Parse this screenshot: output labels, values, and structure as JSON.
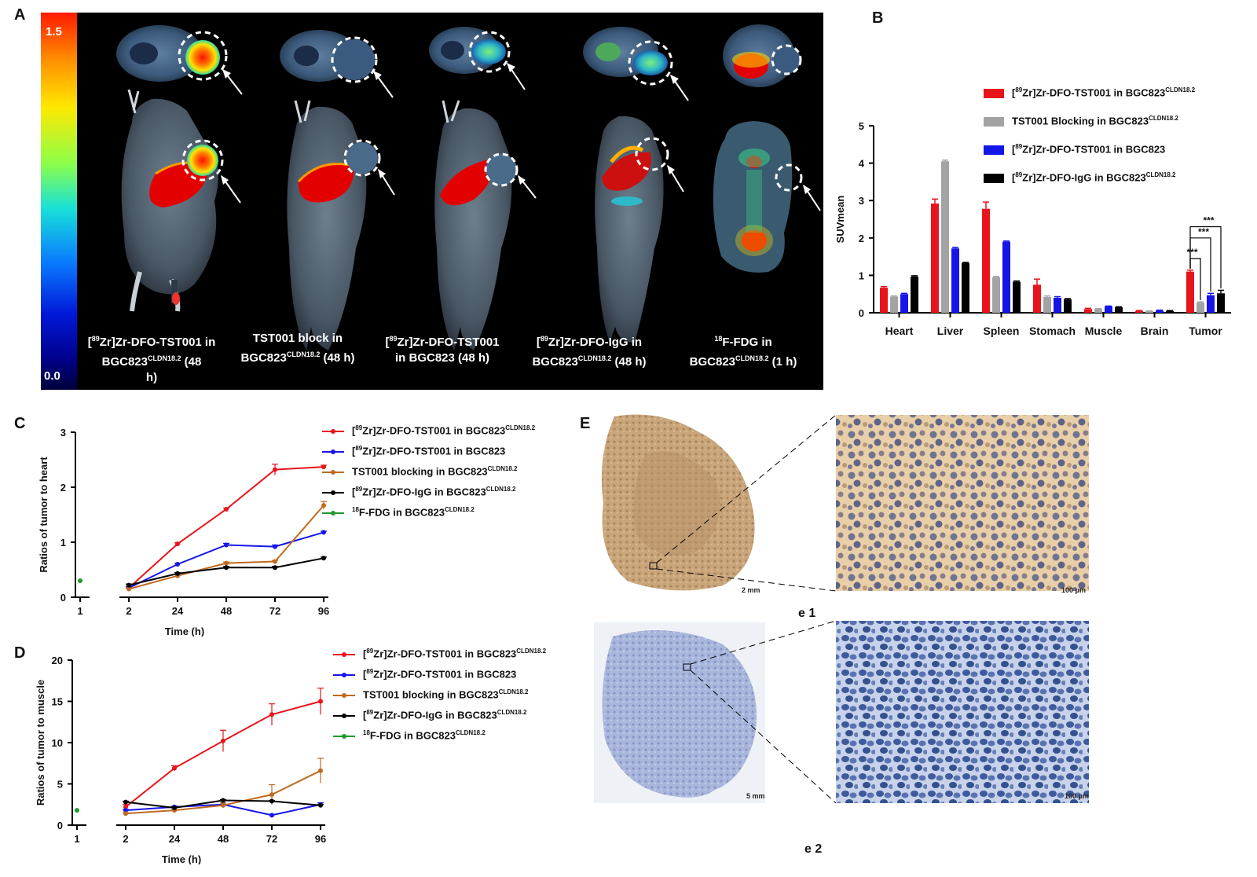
{
  "panels": {
    "A": "A",
    "B": "B",
    "C": "C",
    "D": "D",
    "E": "E"
  },
  "panel_a": {
    "colorbar_max": "1.5",
    "colorbar_min": "0.0",
    "captions": [
      {
        "pre": "[",
        "sup1": "89",
        "mid": "Zr]Zr-DFO-TST001 in",
        "line2": "BGC823",
        "sup2": "CLDN18.2",
        "post": "  (48",
        "line3": "h)"
      },
      {
        "line1": "TST001 block in",
        "line2": "BGC823",
        "sup2": "CLDN18.2",
        "post": "  (48 h)"
      },
      {
        "pre": "[",
        "sup1": "89",
        "mid": "Zr]Zr-DFO-TST001",
        "line2": "in  BGC823  (48 h)"
      },
      {
        "pre": "[",
        "sup1": "89",
        "mid": "Zr]Zr-DFO-IgG in",
        "line2": "BGC823",
        "sup2": "CLDN18.2",
        "post": "  (48 h)"
      },
      {
        "sup1": "18",
        "mid": "F-FDG in",
        "line2": "BGC823",
        "sup2": "CLDN18.2",
        "post": "  (1 h)"
      }
    ]
  },
  "chart_data": [
    {
      "panel": "B",
      "type": "bar",
      "ylabel": "SUVmean",
      "ylim": [
        0,
        5
      ],
      "yticks": [
        "0",
        "1",
        "2",
        "3",
        "4",
        "5"
      ],
      "categories": [
        "Heart",
        "Liver",
        "Spleen",
        "Stomach",
        "Muscle",
        "Brain",
        "Tumor"
      ],
      "series": [
        {
          "name": "[89Zr]Zr-DFO-TST001 in BGC823CLDN18.2",
          "color": "#e8141b",
          "values": [
            0.67,
            2.92,
            2.78,
            0.75,
            0.1,
            0.05,
            1.1
          ],
          "errors": [
            0.03,
            0.12,
            0.18,
            0.15,
            0.02,
            0.01,
            0.04
          ]
        },
        {
          "name": "TST001 Blocking in BGC823CLDN18.2",
          "color": "#a3a3a3",
          "values": [
            0.43,
            4.05,
            0.95,
            0.42,
            0.1,
            0.04,
            0.27
          ],
          "errors": [
            0.02,
            0.03,
            0.02,
            0.03,
            0.01,
            0.01,
            0.02
          ]
        },
        {
          "name": "[89Zr]Zr-DFO-TST001 in BGC823",
          "color": "#1515e8",
          "values": [
            0.5,
            1.72,
            1.9,
            0.4,
            0.17,
            0.06,
            0.47
          ],
          "errors": [
            0.02,
            0.03,
            0.02,
            0.03,
            0.01,
            0.01,
            0.05
          ]
        },
        {
          "name": "[89Zr]Zr-DFO-IgG in BGC823CLDN18.2",
          "color": "#000000",
          "values": [
            0.97,
            1.33,
            0.83,
            0.36,
            0.15,
            0.05,
            0.52
          ],
          "errors": [
            0.02,
            0.02,
            0.02,
            0.02,
            0.01,
            0.01,
            0.08
          ]
        }
      ],
      "significance": [
        "***",
        "***",
        "***"
      ],
      "legend_placement": "top-right"
    },
    {
      "panel": "C",
      "type": "line",
      "xlabel": "Time (h)",
      "ylabel": "Ratios of tumor to heart",
      "ylim": [
        0,
        3
      ],
      "yticks": [
        "0",
        "1",
        "2",
        "3"
      ],
      "xticks": [
        "1",
        "2",
        "24",
        "48",
        "72",
        "96"
      ],
      "series": [
        {
          "name": "[89Zr]Zr-DFO-TST001 in BGC823CLDN18.2",
          "color": "#e8141b",
          "x": [
            "2",
            "24",
            "48",
            "72",
            "96"
          ],
          "values": [
            0.17,
            0.97,
            1.6,
            2.32,
            2.37
          ],
          "errors": [
            0.02,
            0.02,
            0.02,
            0.1,
            0.03
          ]
        },
        {
          "name": "[89Zr]Zr-DFO-TST001 in BGC823",
          "color": "#1515e8",
          "x": [
            "2",
            "24",
            "48",
            "72",
            "96"
          ],
          "values": [
            0.17,
            0.6,
            0.95,
            0.92,
            1.18
          ],
          "errors": [
            0.02,
            0.02,
            0.03,
            0.03,
            0.02
          ]
        },
        {
          "name": "TST001 blocking in BGC823CLDN18.2",
          "color": "#c06a1f",
          "x": [
            "2",
            "24",
            "48",
            "72",
            "96"
          ],
          "values": [
            0.15,
            0.39,
            0.62,
            0.65,
            1.67
          ],
          "errors": [
            0.02,
            0.02,
            0.02,
            0.02,
            0.07
          ]
        },
        {
          "name": "[89Zr]Zr-DFO-IgG in BGC823CLDN18.2",
          "color": "#000000",
          "x": [
            "2",
            "24",
            "48",
            "72",
            "96"
          ],
          "values": [
            0.22,
            0.43,
            0.54,
            0.54,
            0.71
          ],
          "errors": [
            0.02,
            0.02,
            0.02,
            0.02,
            0.02
          ]
        },
        {
          "name": "18F-FDG in BGC823CLDN18.2",
          "color": "#1f9a2a",
          "x": [
            "1"
          ],
          "values": [
            0.3
          ],
          "errors": [
            0
          ]
        }
      ]
    },
    {
      "panel": "D",
      "type": "line",
      "xlabel": "Time (h)",
      "ylabel": "Ratios of tumor to muscle",
      "ylim": [
        0,
        20
      ],
      "yticks": [
        "0",
        "5",
        "10",
        "15",
        "20"
      ],
      "xticks": [
        "1",
        "2",
        "24",
        "48",
        "72",
        "96"
      ],
      "series": [
        {
          "name": "[89Zr]Zr-DFO-TST001 in BGC823CLDN18.2",
          "color": "#e8141b",
          "x": [
            "2",
            "24",
            "48",
            "72",
            "96"
          ],
          "values": [
            2.2,
            6.9,
            10.2,
            13.4,
            15.0
          ],
          "errors": [
            0.3,
            0.3,
            1.3,
            1.3,
            1.6
          ]
        },
        {
          "name": "[89Zr]Zr-DFO-TST001 in BGC823",
          "color": "#1515e8",
          "x": [
            "2",
            "24",
            "48",
            "72",
            "96"
          ],
          "values": [
            1.8,
            2.2,
            2.5,
            1.2,
            2.5
          ],
          "errors": [
            0.1,
            0.1,
            0.2,
            0.1,
            0.2
          ]
        },
        {
          "name": "TST001 blocking in BGC823CLDN18.2",
          "color": "#c06a1f",
          "x": [
            "2",
            "24",
            "48",
            "72",
            "96"
          ],
          "values": [
            1.4,
            1.8,
            2.4,
            3.7,
            6.6
          ],
          "errors": [
            0.1,
            0.1,
            0.3,
            1.2,
            1.5
          ]
        },
        {
          "name": "[89Zr]Zr-DFO-IgG in BGC823CLDN18.2",
          "color": "#000000",
          "x": [
            "2",
            "24",
            "48",
            "72",
            "96"
          ],
          "values": [
            2.8,
            2.1,
            3.0,
            2.9,
            2.4
          ],
          "errors": [
            0.1,
            0.1,
            0.1,
            0.1,
            0.1
          ]
        },
        {
          "name": "18F-FDG in BGC823CLDN18.2",
          "color": "#1f9a2a",
          "x": [
            "1"
          ],
          "values": [
            1.8
          ],
          "errors": [
            0
          ]
        }
      ]
    }
  ],
  "legend_text": {
    "b": [
      {
        "pre": "[",
        "sup1": "89",
        "mid": "Zr]Zr-DFO-TST001 in BGC823",
        "sup2": "CLDN18.2"
      },
      {
        "pre": "",
        "sup1": "",
        "mid": "TST001 Blocking in BGC823",
        "sup2": "CLDN18.2"
      },
      {
        "pre": "[",
        "sup1": "89",
        "mid": "Zr]Zr-DFO-TST001 in BGC823",
        "sup2": ""
      },
      {
        "pre": "[",
        "sup1": "89",
        "mid": "Zr]Zr-DFO-IgG in BGC823",
        "sup2": "CLDN18.2"
      }
    ],
    "cd": [
      {
        "pre": "[",
        "sup1": "89",
        "mid": "Zr]Zr-DFO-TST001 in BGC823",
        "sup2": "CLDN18.2"
      },
      {
        "pre": "[",
        "sup1": "89",
        "mid": "Zr]Zr-DFO-TST001 in BGC823",
        "sup2": ""
      },
      {
        "pre": "",
        "sup1": "",
        "mid": "TST001 blocking in BGC823",
        "sup2": "CLDN18.2"
      },
      {
        "pre": "[",
        "sup1": "89",
        "mid": "Zr]Zr-DFO-IgG in BGC823",
        "sup2": "CLDN18.2"
      },
      {
        "pre": "",
        "sup1": "18",
        "mid": "F-FDG in BGC823",
        "sup2": "CLDN18.2"
      }
    ]
  },
  "panel_e": {
    "e1_label": "e 1",
    "e2_label": "e 2",
    "e1_scale_whole": "2 mm",
    "e1_scale_zoom": "100 μm",
    "e2_scale_whole": "5 mm",
    "e2_scale_zoom": "100 μm"
  }
}
